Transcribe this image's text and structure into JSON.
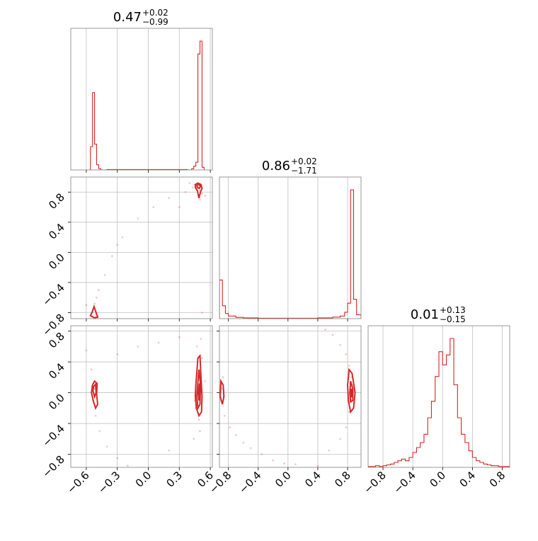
{
  "colors": {
    "series": "#d62728",
    "grid": "#c0c0c0",
    "frame": "#808080"
  },
  "chart_data": {
    "type": "corner",
    "grid": true,
    "parameters": [
      {
        "median": "0.47",
        "plus": "+0.02",
        "minus": "−0.99"
      },
      {
        "median": "0.86",
        "plus": "+0.02",
        "minus": "−1.71"
      },
      {
        "median": "0.01",
        "plus": "+0.13",
        "minus": "−0.15"
      }
    ],
    "axes": {
      "x0": {
        "range": [
          -0.75,
          0.62
        ],
        "ticks": [
          -0.6,
          -0.3,
          0.0,
          0.3,
          0.6
        ],
        "tick_labels": [
          "−0.6",
          "−0.3",
          "0.0",
          "0.3",
          "0.6"
        ]
      },
      "x1": {
        "range": [
          -0.92,
          0.98
        ],
        "ticks": [
          -0.8,
          -0.4,
          0.0,
          0.4,
          0.8
        ],
        "tick_labels": [
          "−0.8",
          "−0.4",
          "0.0",
          "0.4",
          "0.8"
        ]
      },
      "x2": {
        "range": [
          -1.0,
          0.9
        ],
        "ticks": [
          -0.8,
          -0.4,
          0.0,
          0.4,
          0.8
        ],
        "tick_labels": [
          "−0.8",
          "−0.4",
          "0.0",
          "0.4",
          "0.8"
        ]
      },
      "y1": {
        "range": [
          -0.88,
          1.0
        ],
        "ticks": [
          -0.8,
          -0.4,
          0.0,
          0.4,
          0.8
        ],
        "tick_labels": [
          "−0.8",
          "−0.4",
          "0.0",
          "0.4",
          "0.8"
        ]
      },
      "y2": {
        "range": [
          -0.97,
          0.87
        ],
        "ticks": [
          -0.8,
          -0.4,
          0.0,
          0.4,
          0.8
        ],
        "tick_labels": [
          "−0.8",
          "−0.4",
          "0.0",
          "0.4",
          "0.8"
        ]
      }
    },
    "histograms": [
      {
        "param": 0,
        "edges": [
          -0.56,
          -0.54,
          -0.52,
          -0.5,
          -0.48,
          -0.46,
          -0.4,
          0.38,
          0.42,
          0.44,
          0.46,
          0.48,
          0.5,
          0.52,
          0.54
        ],
        "counts": [
          0.18,
          0.6,
          0.2,
          0.04,
          0.01,
          0.0,
          0.003,
          0.0,
          0.01,
          0.03,
          0.06,
          0.9,
          1.0,
          0.02
        ]
      },
      {
        "param": 1,
        "edges": [
          -0.92,
          -0.88,
          -0.84,
          -0.8,
          -0.7,
          -0.6,
          -0.4,
          0.0,
          0.4,
          0.6,
          0.7,
          0.76,
          0.8,
          0.84,
          0.88,
          0.92,
          0.98
        ],
        "counts": [
          0.3,
          0.1,
          0.04,
          0.02,
          0.01,
          0.006,
          0.003,
          0.003,
          0.006,
          0.012,
          0.02,
          0.05,
          0.12,
          1.0,
          0.15,
          0.03
        ]
      },
      {
        "param": 2,
        "edges": [
          -1.0,
          -0.95,
          -0.9,
          -0.85,
          -0.8,
          -0.75,
          -0.7,
          -0.65,
          -0.6,
          -0.55,
          -0.5,
          -0.45,
          -0.4,
          -0.35,
          -0.3,
          -0.25,
          -0.2,
          -0.15,
          -0.1,
          -0.05,
          0.0,
          0.05,
          0.1,
          0.15,
          0.2,
          0.25,
          0.3,
          0.35,
          0.4,
          0.45,
          0.5,
          0.55,
          0.6,
          0.65,
          0.7,
          0.75,
          0.8,
          0.85,
          0.9
        ],
        "counts": [
          0.005,
          0.005,
          0.01,
          0.005,
          0.01,
          0.015,
          0.02,
          0.03,
          0.04,
          0.05,
          0.04,
          0.06,
          0.09,
          0.12,
          0.15,
          0.2,
          0.3,
          0.4,
          0.55,
          0.7,
          0.62,
          0.68,
          0.78,
          0.5,
          0.3,
          0.2,
          0.15,
          0.1,
          0.06,
          0.04,
          0.03,
          0.02,
          0.015,
          0.01,
          0.01,
          0.005,
          0.005,
          0.005
        ]
      }
    ],
    "scatter_01": [
      [
        0.49,
        0.88
      ],
      [
        0.47,
        0.85
      ],
      [
        0.5,
        0.82
      ],
      [
        0.52,
        0.78
      ],
      [
        0.45,
        0.9
      ],
      [
        0.43,
        0.86
      ],
      [
        0.5,
        0.7
      ],
      [
        0.36,
        0.8
      ],
      [
        0.2,
        0.72
      ],
      [
        0.05,
        0.6
      ],
      [
        -0.1,
        0.45
      ],
      [
        -0.25,
        0.2
      ],
      [
        -0.35,
        -0.05
      ],
      [
        -0.42,
        -0.3
      ],
      [
        -0.48,
        -0.5
      ],
      [
        -0.5,
        -0.6
      ],
      [
        -0.52,
        -0.68
      ],
      [
        -0.53,
        -0.75
      ],
      [
        -0.54,
        -0.8
      ],
      [
        -0.55,
        -0.84
      ],
      [
        -0.51,
        -0.86
      ],
      [
        -0.49,
        -0.84
      ],
      [
        0.3,
        0.6
      ],
      [
        -0.6,
        -0.7
      ],
      [
        0.55,
        0.75
      ],
      [
        0.4,
        0.92
      ],
      [
        -0.3,
        0.1
      ],
      [
        0.52,
        -0.8
      ]
    ],
    "scatter_02": [
      [
        -0.52,
        0.05
      ],
      [
        -0.5,
        0.1
      ],
      [
        -0.53,
        -0.1
      ],
      [
        -0.51,
        -0.3
      ],
      [
        -0.55,
        0.3
      ],
      [
        -0.47,
        -0.5
      ],
      [
        -0.4,
        -0.7
      ],
      [
        -0.3,
        -0.85
      ],
      [
        -0.2,
        -0.95
      ],
      [
        0.48,
        0.0
      ],
      [
        0.5,
        0.25
      ],
      [
        0.46,
        -0.2
      ],
      [
        0.52,
        0.45
      ],
      [
        0.49,
        -0.35
      ],
      [
        0.47,
        0.6
      ],
      [
        0.5,
        -0.5
      ],
      [
        0.51,
        0.7
      ],
      [
        0.44,
        -0.6
      ],
      [
        0.3,
        0.72
      ],
      [
        0.1,
        0.65
      ],
      [
        -0.1,
        0.6
      ],
      [
        -0.3,
        0.5
      ],
      [
        0.2,
        -0.75
      ],
      [
        -0.6,
        0.55
      ],
      [
        0.55,
        0.15
      ],
      [
        0.45,
        -0.1
      ]
    ],
    "scatter_12": [
      [
        -0.88,
        0.05
      ],
      [
        -0.9,
        -0.1
      ],
      [
        -0.85,
        -0.3
      ],
      [
        -0.78,
        -0.45
      ],
      [
        -0.7,
        -0.55
      ],
      [
        -0.6,
        -0.65
      ],
      [
        -0.5,
        -0.72
      ],
      [
        -0.35,
        -0.8
      ],
      [
        -0.2,
        -0.88
      ],
      [
        -0.05,
        -0.92
      ],
      [
        0.4,
        -0.95
      ],
      [
        0.84,
        0.0
      ],
      [
        0.86,
        0.2
      ],
      [
        0.82,
        0.35
      ],
      [
        0.78,
        0.5
      ],
      [
        0.7,
        0.62
      ],
      [
        0.6,
        0.75
      ],
      [
        0.5,
        0.82
      ],
      [
        0.82,
        -0.25
      ],
      [
        0.78,
        -0.45
      ],
      [
        0.7,
        -0.6
      ],
      [
        0.55,
        -0.75
      ],
      [
        0.88,
        0.1
      ],
      [
        0.85,
        -0.1
      ],
      [
        -0.87,
        0.2
      ],
      [
        0.1,
        -0.93
      ]
    ],
    "contours_01": [
      {
        "points": [
          [
            0.455,
            0.9
          ],
          [
            0.48,
            0.92
          ],
          [
            0.51,
            0.9
          ],
          [
            0.52,
            0.85
          ],
          [
            0.505,
            0.8
          ],
          [
            0.49,
            0.72
          ],
          [
            0.475,
            0.82
          ],
          [
            0.455,
            0.86
          ]
        ]
      },
      {
        "points": [
          [
            0.47,
            0.89
          ],
          [
            0.49,
            0.905
          ],
          [
            0.505,
            0.88
          ],
          [
            0.495,
            0.85
          ],
          [
            0.475,
            0.86
          ]
        ]
      },
      {
        "points": [
          [
            -0.56,
            -0.84
          ],
          [
            -0.54,
            -0.78
          ],
          [
            -0.525,
            -0.72
          ],
          [
            -0.51,
            -0.78
          ],
          [
            -0.49,
            -0.86
          ],
          [
            -0.52,
            -0.87
          ]
        ]
      }
    ],
    "contours_02": [
      {
        "points": [
          [
            -0.54,
            0.1
          ],
          [
            -0.52,
            0.15
          ],
          [
            -0.495,
            0.12
          ],
          [
            -0.5,
            -0.02
          ],
          [
            -0.49,
            -0.15
          ],
          [
            -0.51,
            -0.2
          ],
          [
            -0.53,
            -0.12
          ],
          [
            -0.55,
            0.0
          ]
        ]
      },
      {
        "points": [
          [
            -0.53,
            0.08
          ],
          [
            -0.51,
            0.11
          ],
          [
            -0.505,
            0.0
          ],
          [
            -0.52,
            -0.05
          ],
          [
            -0.535,
            0.02
          ]
        ]
      },
      {
        "points": [
          [
            0.46,
            0.1
          ],
          [
            0.48,
            0.45
          ],
          [
            0.5,
            0.48
          ],
          [
            0.51,
            0.2
          ],
          [
            0.52,
            -0.05
          ],
          [
            0.515,
            -0.25
          ],
          [
            0.49,
            -0.3
          ],
          [
            0.465,
            -0.2
          ],
          [
            0.455,
            -0.05
          ]
        ]
      },
      {
        "points": [
          [
            0.475,
            0.05
          ],
          [
            0.49,
            0.3
          ],
          [
            0.505,
            0.1
          ],
          [
            0.5,
            -0.15
          ],
          [
            0.48,
            -0.2
          ],
          [
            0.47,
            -0.05
          ]
        ]
      },
      {
        "points": [
          [
            0.485,
            0.0
          ],
          [
            0.495,
            0.12
          ],
          [
            0.5,
            -0.05
          ],
          [
            0.49,
            -0.1
          ]
        ]
      }
    ],
    "contours_12": [
      {
        "points": [
          [
            -0.9,
            0.15
          ],
          [
            -0.87,
            0.1
          ],
          [
            -0.86,
            -0.05
          ],
          [
            -0.88,
            -0.15
          ],
          [
            -0.91,
            -0.05
          ]
        ]
      },
      {
        "points": [
          [
            0.82,
            0.3
          ],
          [
            0.86,
            0.25
          ],
          [
            0.9,
            0.0
          ],
          [
            0.88,
            -0.2
          ],
          [
            0.84,
            -0.25
          ],
          [
            0.81,
            -0.1
          ],
          [
            0.8,
            0.1
          ]
        ]
      },
      {
        "points": [
          [
            0.84,
            0.15
          ],
          [
            0.87,
            0.05
          ],
          [
            0.87,
            -0.1
          ],
          [
            0.84,
            -0.12
          ],
          [
            0.83,
            0.0
          ]
        ]
      },
      {
        "points": [
          [
            0.85,
            0.05
          ],
          [
            0.86,
            -0.02
          ],
          [
            0.85,
            -0.06
          ],
          [
            0.845,
            0.0
          ]
        ]
      }
    ]
  }
}
